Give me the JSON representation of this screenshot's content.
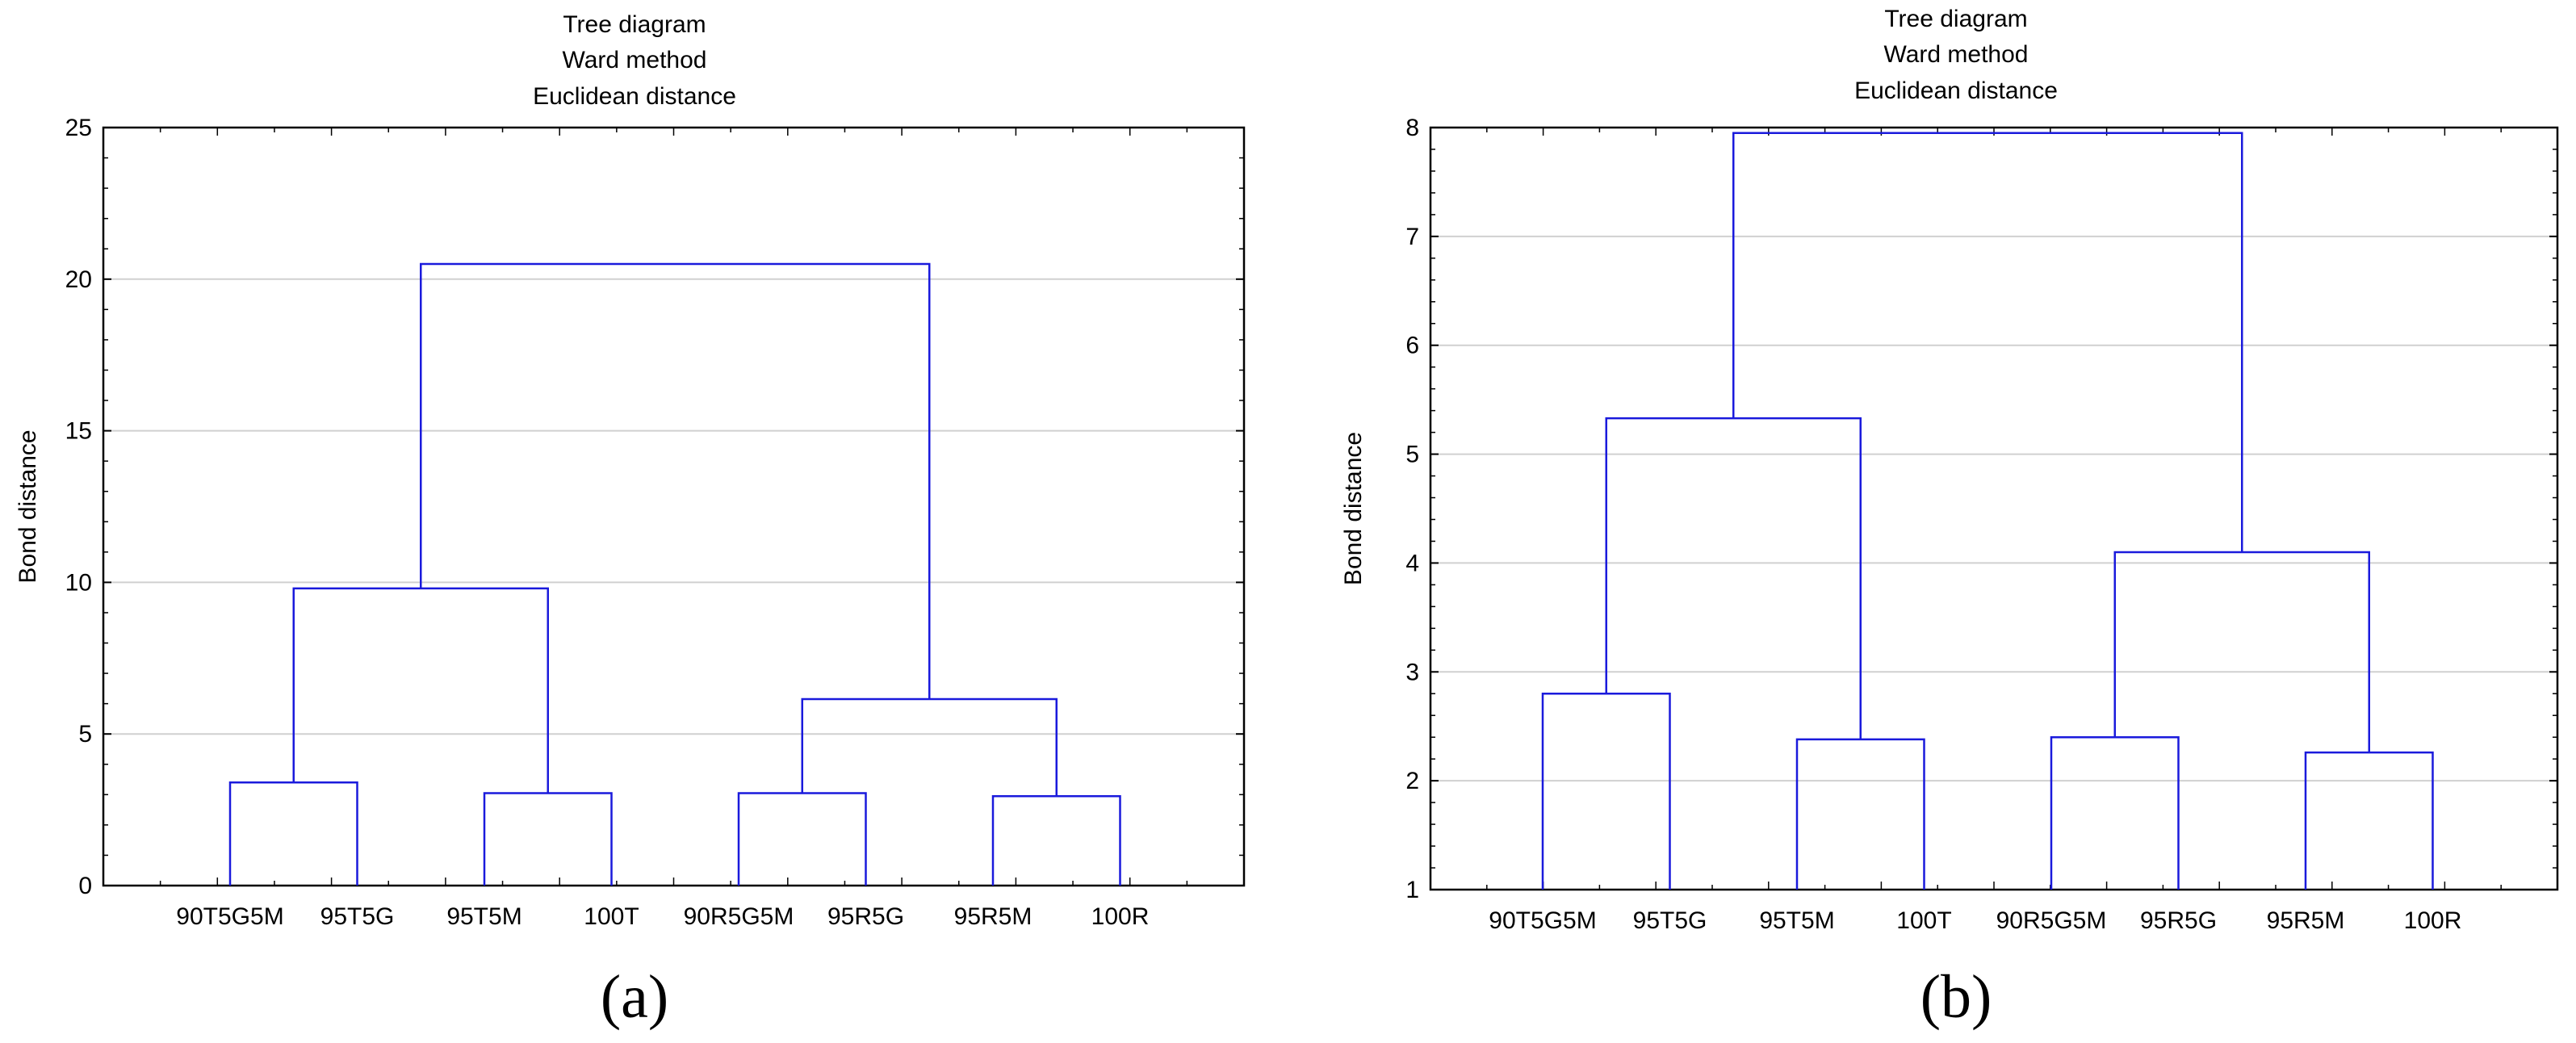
{
  "chart_data": [
    {
      "type": "dendrogram",
      "title": [
        "Tree diagram",
        "Ward method",
        "Euclidean distance"
      ],
      "ylabel": "Bond distance",
      "ylim": [
        0,
        25
      ],
      "yticks": [
        0,
        5,
        10,
        15,
        20,
        25
      ],
      "grid": true,
      "line_color": "#1a1adc",
      "panel_label": "(a)",
      "leaves": [
        "90T5G5M",
        "95T5G",
        "95T5M",
        "100T",
        "90R5G5M",
        "95R5G",
        "95R5M",
        "100R"
      ],
      "merges": [
        {
          "left": 0,
          "right": 1,
          "height": 3.4
        },
        {
          "left": 2,
          "right": 3,
          "height": 3.05
        },
        {
          "left": 4,
          "right": 5,
          "height": 3.05
        },
        {
          "left": 6,
          "right": 7,
          "height": 2.95
        },
        {
          "left": 8,
          "right": 9,
          "height": 9.8
        },
        {
          "left": 10,
          "right": 11,
          "height": 6.15
        },
        {
          "left": 12,
          "right": 13,
          "height": 20.5
        }
      ]
    },
    {
      "type": "dendrogram",
      "title": [
        "Tree diagram",
        "Ward method",
        "Euclidean distance"
      ],
      "ylabel": "Bond distance",
      "ylim": [
        1,
        8
      ],
      "yticks": [
        1,
        2,
        3,
        4,
        5,
        6,
        7,
        8
      ],
      "grid": true,
      "line_color": "#1a1adc",
      "panel_label": "(b)",
      "leaves": [
        "90T5G5M",
        "95T5G",
        "95T5M",
        "100T",
        "90R5G5M",
        "95R5G",
        "95R5M",
        "100R"
      ],
      "merges": [
        {
          "left": 0,
          "right": 1,
          "height": 2.8
        },
        {
          "left": 2,
          "right": 3,
          "height": 2.38
        },
        {
          "left": 4,
          "right": 5,
          "height": 2.4
        },
        {
          "left": 6,
          "right": 7,
          "height": 2.26
        },
        {
          "left": 8,
          "right": 9,
          "height": 5.33
        },
        {
          "left": 10,
          "right": 11,
          "height": 4.1
        },
        {
          "left": 12,
          "right": 13,
          "height": 7.95
        }
      ]
    }
  ]
}
